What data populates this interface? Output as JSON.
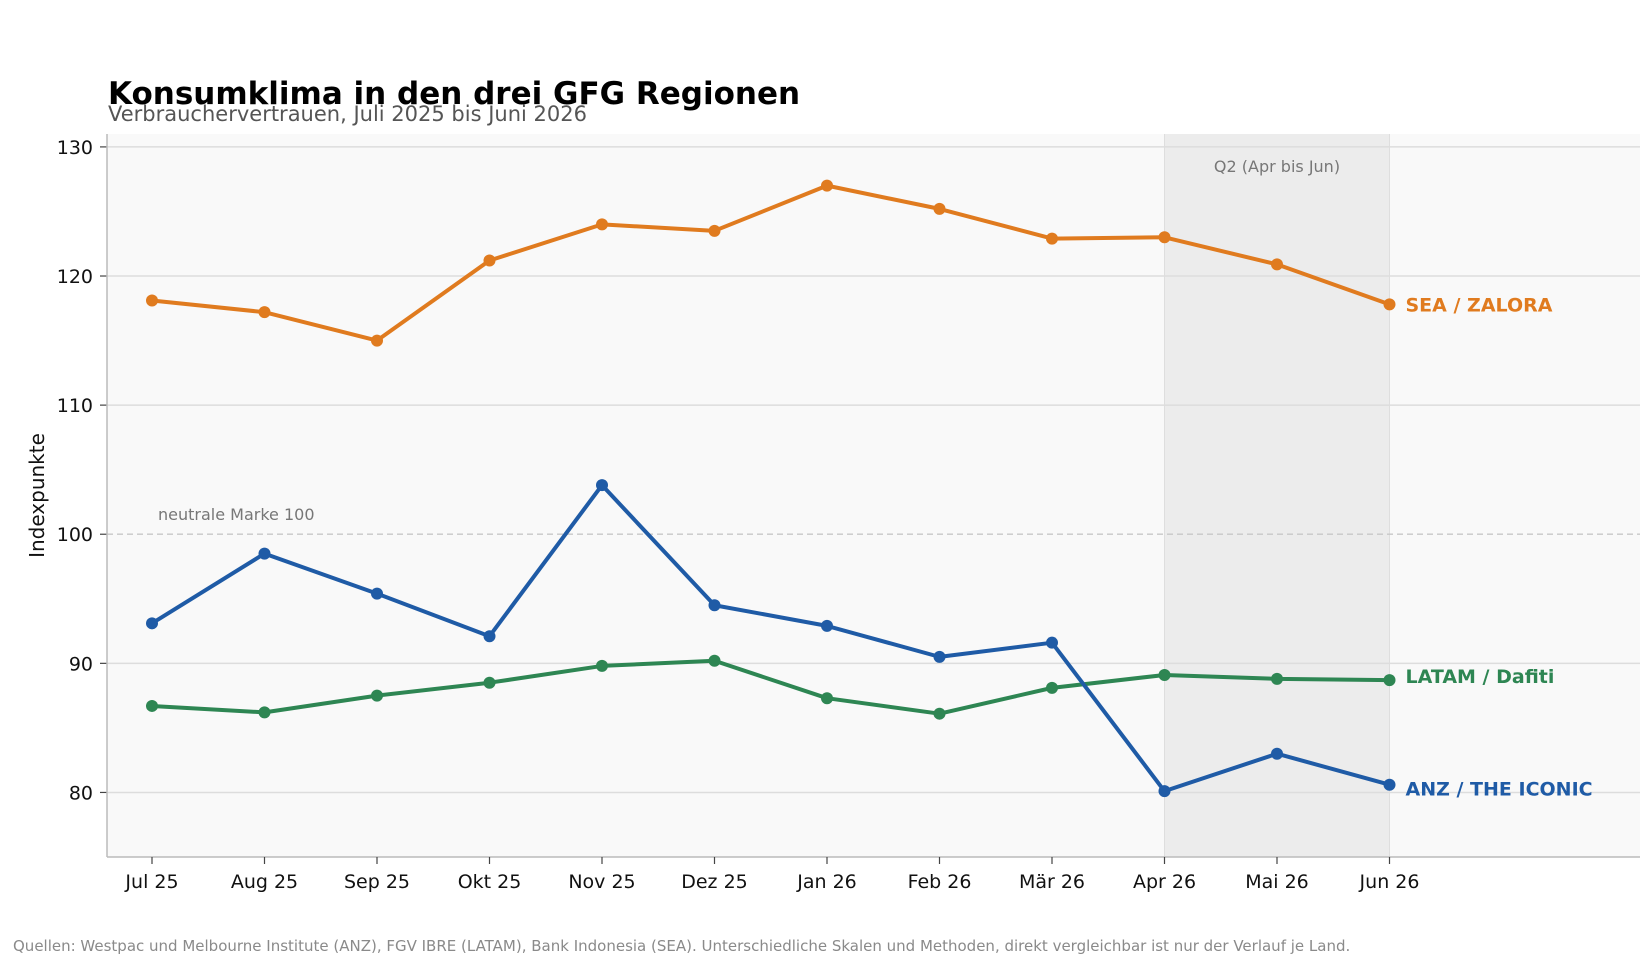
{
  "chart_data": {
    "type": "line",
    "title": "Konsumklima in den drei GFG Regionen",
    "subtitle": "Verbrauchervertrauen, Juli 2025 bis Juni 2026",
    "xlabel": "",
    "ylabel": "Indexpunkte",
    "categories": [
      "Jul 25",
      "Aug 25",
      "Sep 25",
      "Okt 25",
      "Nov 25",
      "Dez 25",
      "Jan 26",
      "Feb 26",
      "Mär 26",
      "Apr 26",
      "Mai 26",
      "Jun 26"
    ],
    "ylim": [
      75,
      131
    ],
    "yticks": [
      80,
      90,
      100,
      110,
      120,
      130
    ],
    "grid": true,
    "series": [
      {
        "name": "SEA / ZALORA",
        "color": "#e07b1f",
        "values": [
          118.1,
          117.2,
          115.0,
          121.2,
          124.0,
          123.5,
          127.0,
          125.2,
          122.9,
          123.0,
          120.9,
          117.8
        ]
      },
      {
        "name": "LATAM / Dafiti",
        "color": "#2e8653",
        "values": [
          86.7,
          86.2,
          87.5,
          88.5,
          89.8,
          90.2,
          87.3,
          86.1,
          88.1,
          89.1,
          88.8,
          88.7
        ]
      },
      {
        "name": "ANZ / THE ICONIC",
        "color": "#1f5ba6",
        "values": [
          93.1,
          98.5,
          95.4,
          92.1,
          103.8,
          94.5,
          92.9,
          90.5,
          91.6,
          80.1,
          83.0,
          80.6
        ]
      }
    ],
    "reference_line": {
      "value": 100,
      "label": "neutrale Marke 100"
    },
    "highlight_region": {
      "from": "Apr 26",
      "to": "Jun 26",
      "label": "Q2 (Apr bis Jun)"
    },
    "source": "Quellen: Westpac und Melbourne Institute (ANZ), FGV IBRE (LATAM), Bank Indonesia (SEA).  Unterschiedliche Skalen und Methoden, direkt vergleichbar ist nur der Verlauf je Land."
  }
}
